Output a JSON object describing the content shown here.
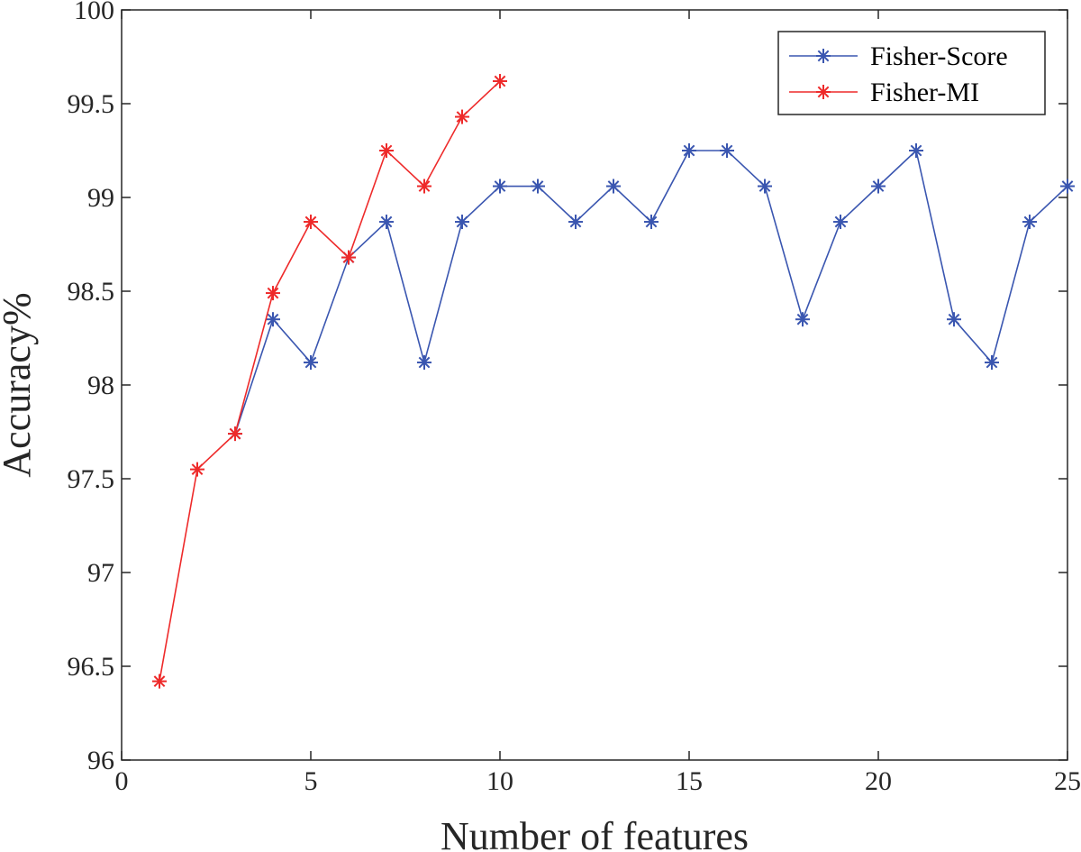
{
  "chart_data": {
    "type": "line",
    "xlabel": "Number of features",
    "ylabel": "Accuracy%",
    "xlim": [
      0,
      25
    ],
    "ylim": [
      96,
      100
    ],
    "xticks": [
      0,
      5,
      10,
      15,
      20,
      25
    ],
    "yticks": [
      96,
      96.5,
      97,
      97.5,
      98,
      98.5,
      99,
      99.5,
      100
    ],
    "grid": false,
    "legend_position": "top-right",
    "series": [
      {
        "name": "Fisher-Score",
        "color": "#3a56b0",
        "marker": "asterisk",
        "x": [
          3,
          4,
          5,
          6,
          7,
          8,
          9,
          10,
          11,
          12,
          13,
          14,
          15,
          16,
          17,
          18,
          19,
          20,
          21,
          22,
          23,
          24,
          25
        ],
        "y": [
          97.74,
          98.35,
          98.12,
          98.68,
          98.87,
          98.12,
          98.87,
          99.06,
          99.06,
          98.87,
          99.06,
          98.87,
          99.25,
          99.25,
          99.06,
          98.35,
          98.87,
          99.06,
          99.25,
          98.35,
          98.12,
          98.87,
          99.06
        ]
      },
      {
        "name": "Fisher-MI",
        "color": "#ee2a2a",
        "marker": "asterisk",
        "x": [
          1,
          2,
          3,
          4,
          5,
          6,
          7,
          8,
          9,
          10
        ],
        "y": [
          96.42,
          97.55,
          97.74,
          98.49,
          98.87,
          98.68,
          99.25,
          99.06,
          99.43,
          99.62
        ]
      }
    ]
  }
}
